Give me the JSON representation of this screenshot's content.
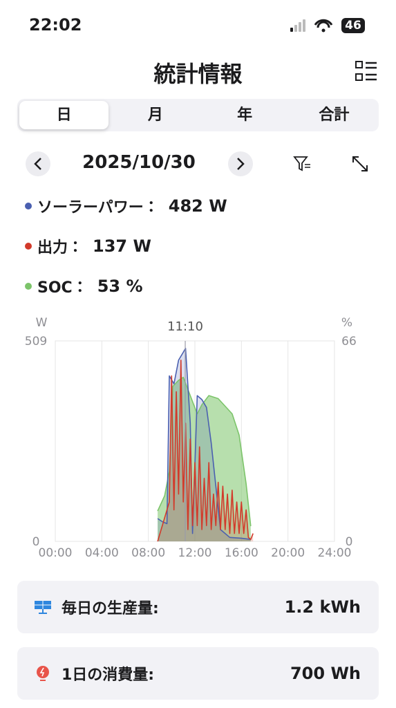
{
  "status_bar": {
    "time": "22:02",
    "battery": "46"
  },
  "header": {
    "title": "統計情報"
  },
  "tabs": [
    "日",
    "月",
    "年",
    "合計"
  ],
  "date_nav": {
    "date": "2025/10/30"
  },
  "readouts": [
    {
      "label": "ソーラーパワー：",
      "value": "482 W"
    },
    {
      "label": "出力：",
      "value": "137 W"
    },
    {
      "label": "SOC：",
      "value": "53 %"
    }
  ],
  "chart_data": {
    "type": "line",
    "y_unit": "W",
    "y2_unit": "%",
    "cursor": {
      "value": 11.17,
      "label": "11:10"
    },
    "xlim": [
      0,
      24
    ],
    "xticks": [
      {
        "value": 0,
        "label": "00:00"
      },
      {
        "value": 4,
        "label": "04:00"
      },
      {
        "value": 8,
        "label": "08:00"
      },
      {
        "value": 12,
        "label": "12:00"
      },
      {
        "value": 16,
        "label": "16:00"
      },
      {
        "value": 20,
        "label": "20:00"
      },
      {
        "value": 24,
        "label": "24:00"
      }
    ],
    "ylim": [
      0,
      509
    ],
    "yticks": [
      0,
      509
    ],
    "y2lim": [
      0,
      66
    ],
    "y2ticks": [
      0,
      66
    ],
    "grid": true,
    "series": [
      {
        "color": "#7cc46a",
        "axis": "y2",
        "x": [
          8.8,
          9.4,
          9.8,
          10.1,
          10.6,
          11.0,
          11.6,
          12.2,
          12.6,
          13.2,
          14.0,
          15.2,
          15.8,
          16.4,
          16.8
        ],
        "values": [
          10,
          15,
          23,
          51,
          53,
          54,
          48,
          42,
          45,
          48,
          47,
          42,
          35,
          19,
          5
        ]
      },
      {
        "color": "#4a5fb0",
        "axis": "y",
        "x": [
          8.8,
          9.2,
          9.6,
          9.8,
          10.2,
          10.6,
          11.0,
          11.2,
          11.6,
          11.8,
          12.2,
          12.6,
          13.0,
          13.4,
          13.8,
          14.2,
          15.0,
          16.0,
          16.8
        ],
        "values": [
          58,
          50,
          45,
          420,
          400,
          460,
          480,
          490,
          300,
          20,
          370,
          360,
          340,
          250,
          140,
          30,
          10,
          8,
          5
        ]
      },
      {
        "color": "#d23a2a",
        "axis": "y",
        "x": [
          8.8,
          9.8,
          10.0,
          10.2,
          10.4,
          10.6,
          10.8,
          11.0,
          11.2,
          11.4,
          11.6,
          11.8,
          12.0,
          12.2,
          12.4,
          12.6,
          12.8,
          13.0,
          13.2,
          13.4,
          13.6,
          13.8,
          14.0,
          14.2,
          14.4,
          14.6,
          14.8,
          15.0,
          15.2,
          15.4,
          15.6,
          15.8,
          16.0,
          16.2,
          16.4,
          16.6,
          16.8,
          17.0
        ],
        "values": [
          0,
          100,
          420,
          80,
          380,
          120,
          460,
          100,
          300,
          30,
          260,
          40,
          200,
          40,
          240,
          30,
          160,
          40,
          200,
          30,
          120,
          40,
          150,
          30,
          140,
          30,
          120,
          20,
          130,
          20,
          100,
          20,
          100,
          20,
          80,
          10,
          5,
          20
        ]
      }
    ]
  },
  "summary": [
    {
      "label": "毎日の生産量:",
      "value": "1.2 kWh"
    },
    {
      "label": "1日の消費量:",
      "value": "700 Wh"
    }
  ]
}
